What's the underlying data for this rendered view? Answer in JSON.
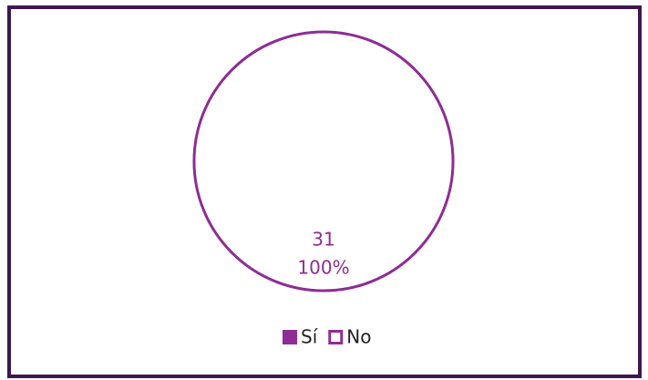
{
  "chart_data": {
    "type": "pie",
    "categories": [
      "Sí",
      "No"
    ],
    "values": [
      0,
      31
    ],
    "percentages": [
      0,
      100
    ],
    "percent_labels": [
      "0%",
      "100%"
    ],
    "colors": [
      "#8e2c95",
      "#ffffff"
    ],
    "edge_color": "#8e2c95",
    "label_colors": [
      "#ffffff",
      "#8e2c95"
    ],
    "legend": "bottom"
  }
}
